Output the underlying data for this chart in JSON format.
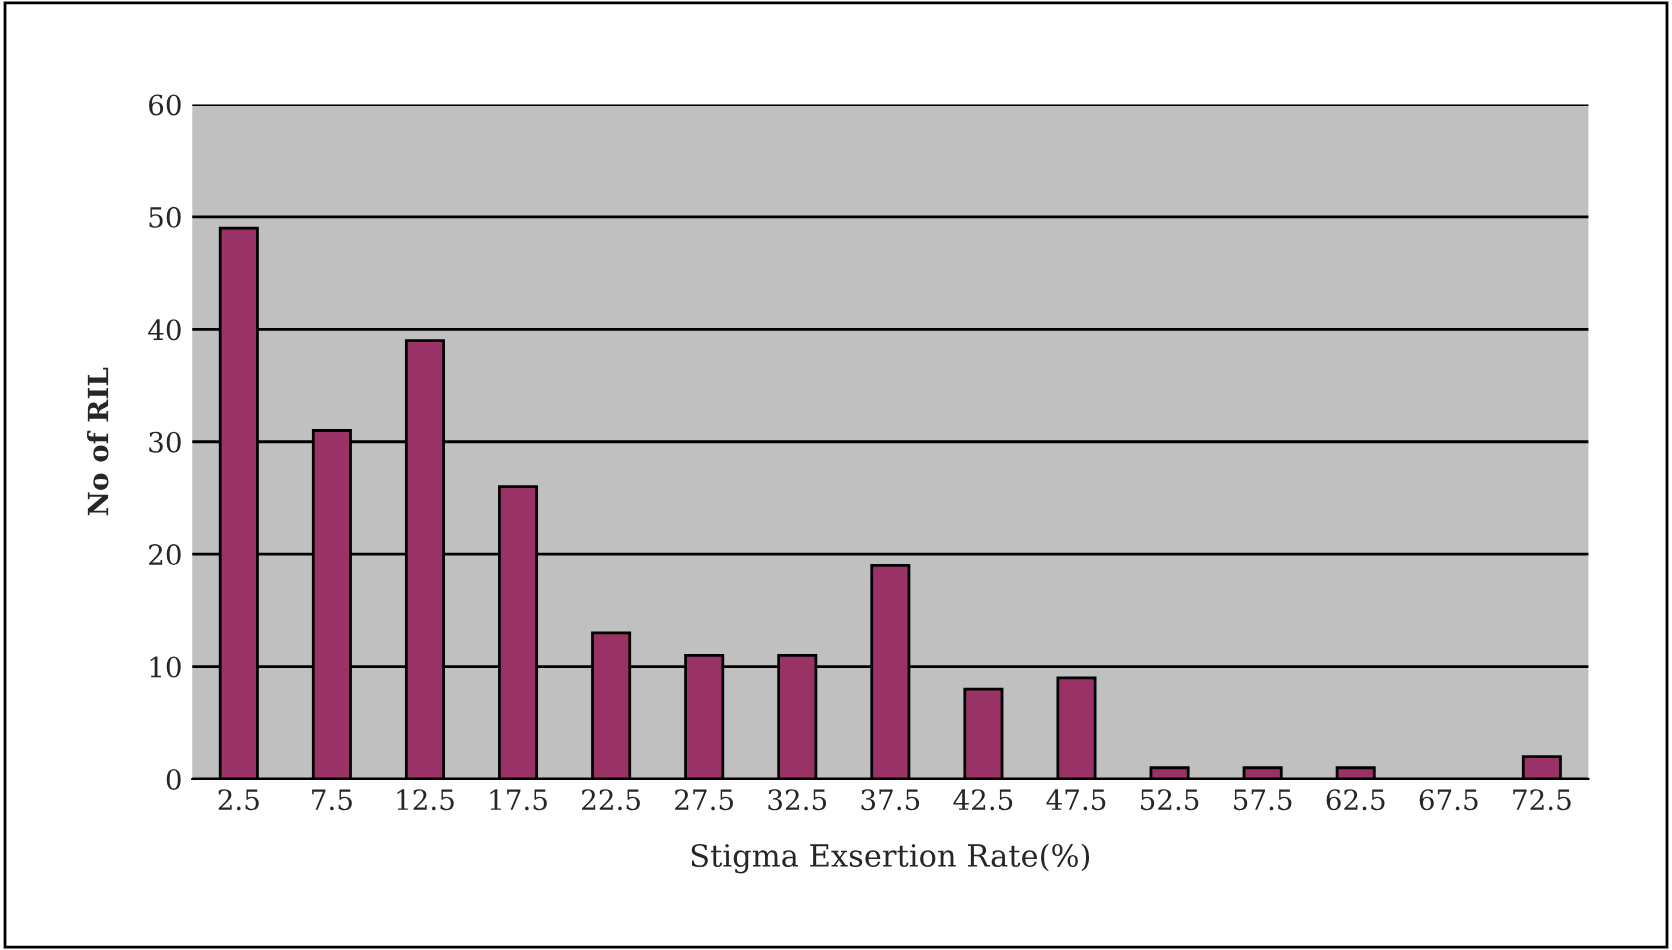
{
  "chart_data": {
    "type": "bar",
    "xlabel": "Stigma Exsertion Rate(%)",
    "ylabel": "No of RIL",
    "categories": [
      "2.5",
      "7.5",
      "12.5",
      "17.5",
      "22.5",
      "27.5",
      "32.5",
      "37.5",
      "42.5",
      "47.5",
      "52.5",
      "57.5",
      "62.5",
      "67.5",
      "72.5"
    ],
    "values": [
      49,
      31,
      39,
      26,
      13,
      11,
      11,
      19,
      8,
      9,
      1,
      1,
      1,
      0,
      2
    ],
    "color": "#993366",
    "ylim": [
      0,
      60
    ],
    "yticks": [
      0,
      10,
      20,
      30,
      40,
      50,
      60
    ],
    "grid": "y",
    "legend": false
  }
}
